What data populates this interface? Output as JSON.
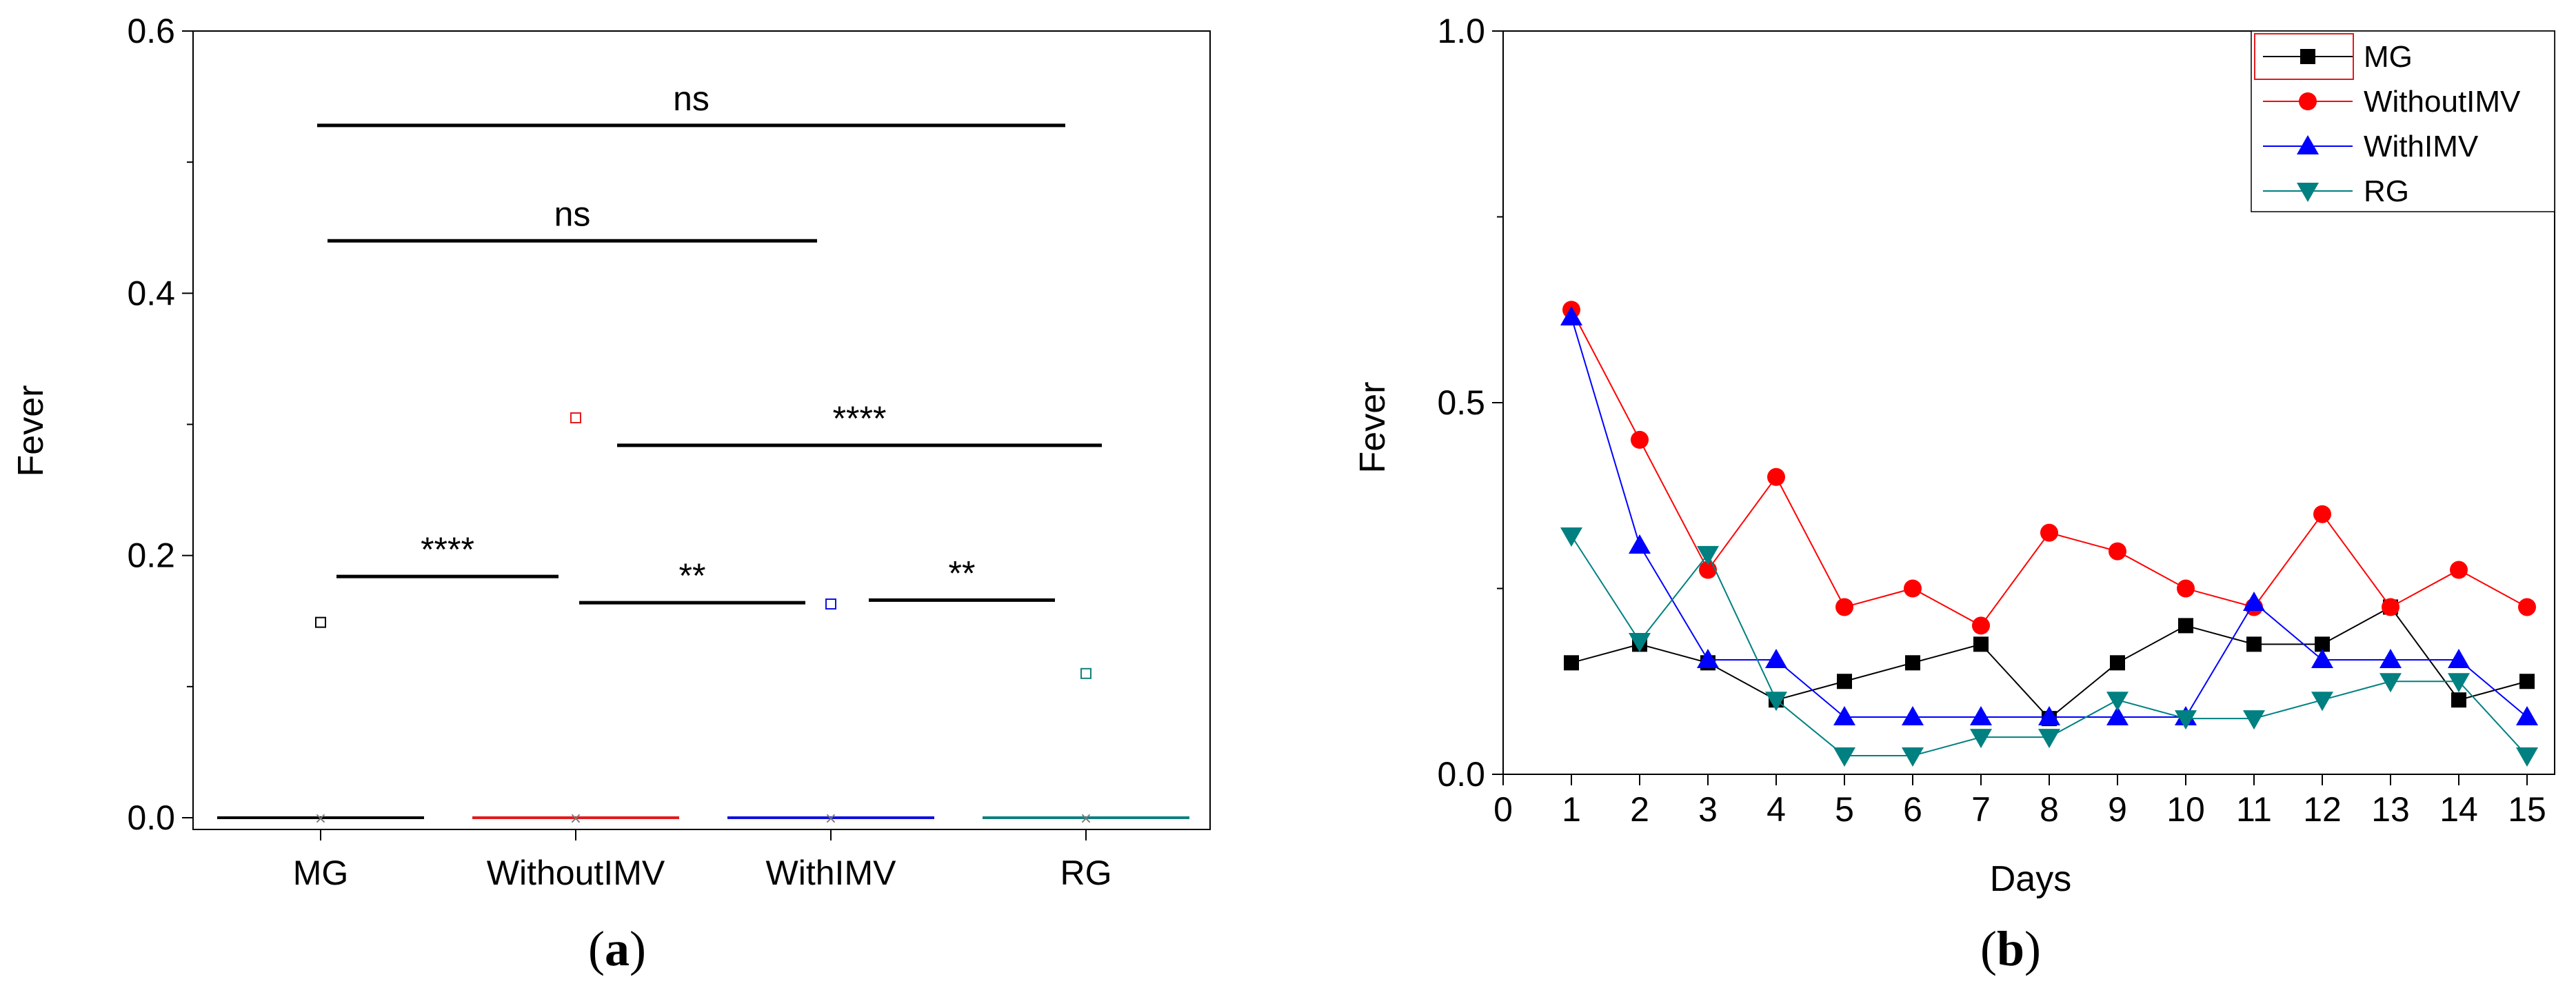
{
  "chart_data": [
    {
      "type": "box",
      "panel": "a",
      "ylabel": "Fever",
      "xlabel": "",
      "ylim": [
        0,
        0.6
      ],
      "yticks": [
        "0.0",
        "0.2",
        "0.4",
        "0.6"
      ],
      "categories": [
        "MG",
        "WithoutIMV",
        "WithIMV",
        "RG"
      ],
      "colors": [
        "#000000",
        "#e41a1c",
        "#1010e0",
        "#108080"
      ],
      "medians": [
        0,
        0,
        0,
        0
      ],
      "means": [
        0.149,
        0.305,
        0.163,
        0.11
      ],
      "significance": [
        {
          "from": 0,
          "to": 3,
          "y": 0.528,
          "label": "ns"
        },
        {
          "from": 0,
          "to": 2,
          "y": 0.44,
          "label": "ns"
        },
        {
          "from": 1,
          "to": 3,
          "y": 0.284,
          "label": "****"
        },
        {
          "from": 0,
          "to": 1,
          "y": 0.184,
          "label": "****"
        },
        {
          "from": 1,
          "to": 2,
          "y": 0.164,
          "label": "**"
        },
        {
          "from": 2,
          "to": 3,
          "y": 0.166,
          "label": "**"
        }
      ]
    },
    {
      "type": "line",
      "panel": "b",
      "xlabel": "Days",
      "ylabel": "Fever",
      "xlim": [
        0,
        15
      ],
      "ylim": [
        0,
        1.0
      ],
      "xticks": [
        "0",
        "1",
        "2",
        "3",
        "4",
        "5",
        "6",
        "7",
        "8",
        "9",
        "10",
        "11",
        "12",
        "13",
        "14",
        "15"
      ],
      "yticks": [
        "0.0",
        "0.5",
        "1.0"
      ],
      "x": [
        1,
        2,
        3,
        4,
        5,
        6,
        7,
        8,
        9,
        10,
        11,
        12,
        13,
        14,
        15
      ],
      "series": [
        {
          "name": "MG",
          "color": "#000000",
          "marker": "square",
          "values": [
            0.15,
            0.175,
            0.15,
            0.1,
            0.125,
            0.15,
            0.175,
            0.075,
            0.15,
            0.2,
            0.175,
            0.175,
            0.225,
            0.1,
            0.125
          ]
        },
        {
          "name": "WithoutIMV",
          "color": "#ff0000",
          "marker": "circle",
          "values": [
            0.625,
            0.45,
            0.275,
            0.4,
            0.225,
            0.25,
            0.2,
            0.325,
            0.3,
            0.25,
            0.225,
            0.35,
            0.225,
            0.275,
            0.225
          ]
        },
        {
          "name": "WithIMV",
          "color": "#0000ff",
          "marker": "triangle-up",
          "values": [
            0.615,
            0.308,
            0.154,
            0.154,
            0.077,
            0.077,
            0.077,
            0.077,
            0.077,
            0.077,
            0.231,
            0.154,
            0.154,
            0.154,
            0.077
          ]
        },
        {
          "name": "RG",
          "color": "#008080",
          "marker": "triangle-down",
          "values": [
            0.321,
            0.179,
            0.296,
            0.1,
            0.025,
            0.025,
            0.05,
            0.05,
            0.1,
            0.075,
            0.075,
            0.1,
            0.125,
            0.125,
            0.025
          ]
        }
      ]
    }
  ],
  "panel_labels": {
    "a": {
      "open": "(",
      "letter": "a",
      "close": ")"
    },
    "b": {
      "open": "(",
      "letter": "b",
      "close": ")"
    }
  }
}
